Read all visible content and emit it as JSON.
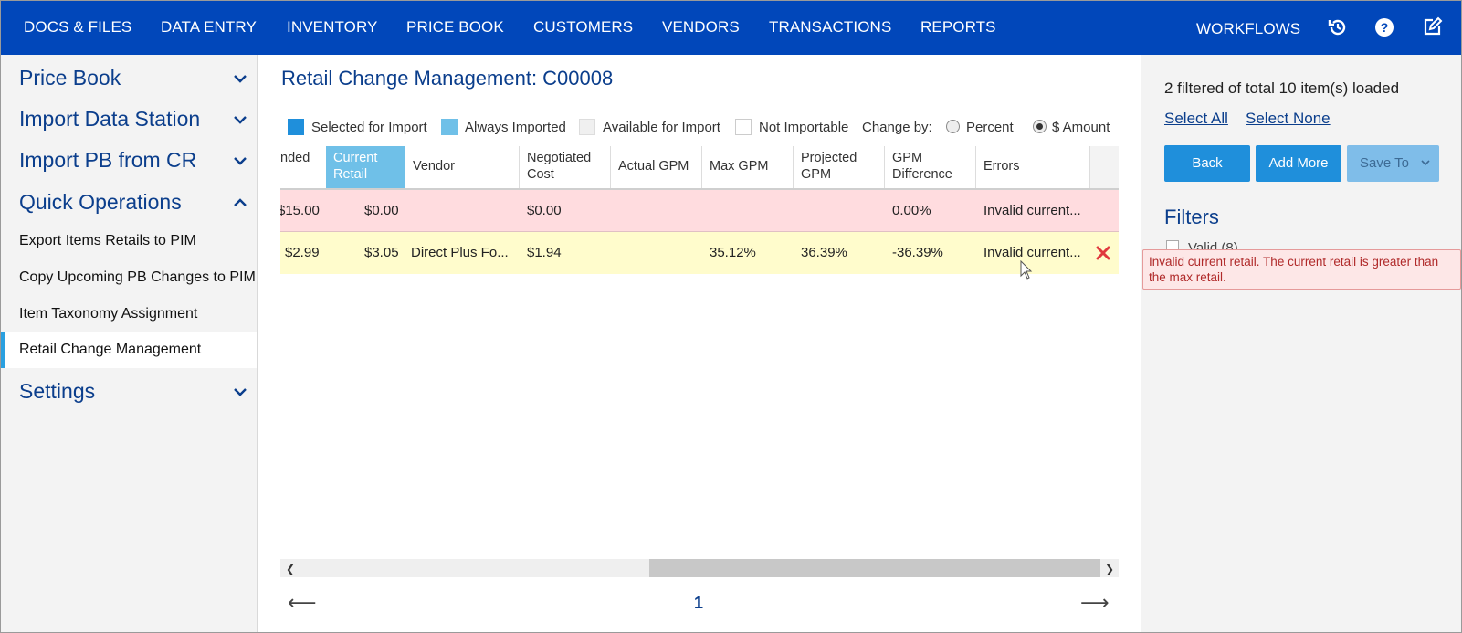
{
  "topnav": {
    "items": [
      "DOCS & FILES",
      "DATA ENTRY",
      "INVENTORY",
      "PRICE BOOK",
      "CUSTOMERS",
      "VENDORS",
      "TRANSACTIONS",
      "REPORTS"
    ],
    "workflows": "WORKFLOWS",
    "icons": [
      "history-icon",
      "help-icon",
      "edit-icon"
    ]
  },
  "sidebar": {
    "sections": {
      "price_book": "Price Book",
      "import_data_station": "Import Data Station",
      "import_pb_from_cr": "Import PB from CR",
      "quick_operations": "Quick Operations",
      "settings": "Settings"
    },
    "quick_ops_items": [
      "Export Items Retails to PIM",
      "Copy Upcoming PB Changes to PIM",
      "Item Taxonomy Assignment",
      "Retail Change Management"
    ],
    "active_item": "Retail Change Management"
  },
  "main": {
    "title": "Retail Change Management: C00008",
    "legend": {
      "selected": "Selected for Import",
      "always": "Always Imported",
      "available": "Available for Import",
      "not_importable": "Not Importable",
      "change_by": "Change by:",
      "percent": "Percent",
      "amount": "$ Amount",
      "selected_option": "$ Amount"
    },
    "colors": {
      "selected": "#1f8fdb",
      "always": "#6fc0e8",
      "available": "#f0f0f0",
      "not_importable": "#ffffff",
      "error_row": "#ffdcdf",
      "warn_row": "#fffccc"
    },
    "columns": {
      "c0": "nded",
      "c1": "Current Retail",
      "c2": "Vendor",
      "c3": "Negotiated Cost",
      "c4": "Actual GPM",
      "c5": "Max GPM",
      "c6": "Projected GPM",
      "c7": "GPM Difference",
      "c8": "Errors"
    },
    "rows": [
      {
        "c0": "$15.00",
        "c1": "$0.00",
        "c2": "",
        "c3": "$0.00",
        "c4": "",
        "c5": "",
        "c6": "",
        "c7": "0.00%",
        "c8": "Invalid current..."
      },
      {
        "c0": "$2.99",
        "c1": "$3.05",
        "c2": "Direct Plus Fo...",
        "c3": "$1.94",
        "c4": "",
        "c5": "35.12%",
        "c6": "36.39%",
        "c7": "-36.39%",
        "c8": "Invalid current..."
      }
    ],
    "pager": {
      "prev": "⟵",
      "page": "1",
      "next": "⟶"
    }
  },
  "right": {
    "loaded": "2 filtered of total 10 item(s) loaded",
    "select_all": "Select All",
    "select_none": "Select None",
    "back": "Back",
    "add_more": "Add More",
    "save_to": "Save To",
    "filters": "Filters",
    "valid_option": "Valid (8)",
    "tooltip": "Invalid current retail. The current retail is greater than the max retail."
  }
}
